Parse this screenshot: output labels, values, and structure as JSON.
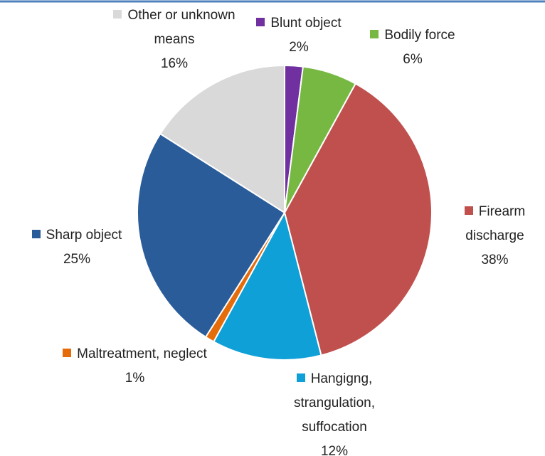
{
  "chart_data": {
    "type": "pie",
    "categories": [
      "Blunt object",
      "Bodily force",
      "Firearm discharge",
      "Hangigng, strangulation, suffocation",
      "Maltreatment, neglect",
      "Sharp object",
      "Other or unknown means"
    ],
    "values": [
      2,
      6,
      38,
      12,
      1,
      25,
      16
    ],
    "value_labels": [
      "2%",
      "6%",
      "38%",
      "12%",
      "1%",
      "25%",
      "16%"
    ],
    "colors": [
      "#7030a0",
      "#77b843",
      "#c0504d",
      "#0ea0d6",
      "#e46c0a",
      "#2a5c9a",
      "#d9d9d9"
    ]
  }
}
